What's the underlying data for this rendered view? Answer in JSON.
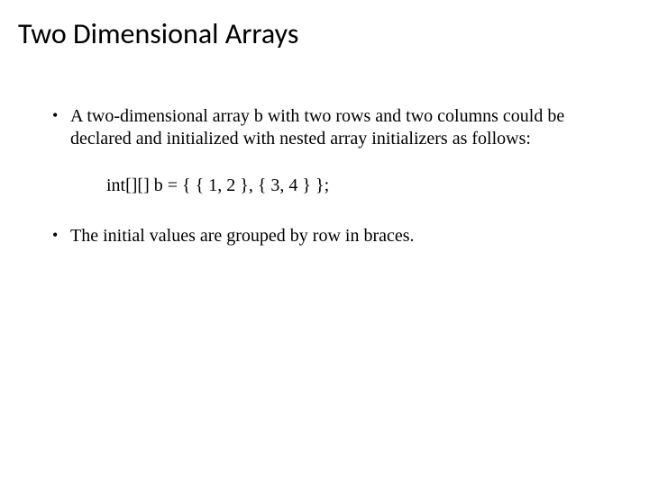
{
  "slide": {
    "title": "Two Dimensional Arrays",
    "bullets": [
      "A two-dimensional array b with two rows and two columns could be declared and initialized with nested array initializers as follows:",
      "The initial values are grouped by row in braces."
    ],
    "code": "int[][] b = { { 1, 2 }, { 3, 4 } };"
  },
  "style": {
    "background_color": "#ffffff",
    "text_color": "#000000",
    "title_font": "Calibri",
    "body_font": "Times New Roman",
    "title_fontsize": 32,
    "body_fontsize": 20
  }
}
